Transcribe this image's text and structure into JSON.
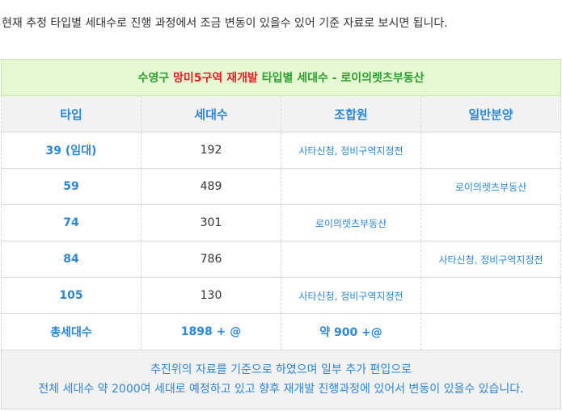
{
  "intro_text": "현재 추정 타입별 세대수로 진행 과정에서 조금 변동이 있을수 있어 기준 자료로 보시면 됩니다.",
  "caption": {
    "part1": "수영구",
    "part2": "망미5구역",
    "part3": "재개발",
    "part4": "타입별 세대수 - 로이의렛츠부동산"
  },
  "headers": [
    "타입",
    "세대수",
    "조합원",
    "일반분양"
  ],
  "rows": [
    {
      "type": "39 (임대)",
      "count": "192",
      "member": "사타신청, 정비구역지정전",
      "general": ""
    },
    {
      "type": "59",
      "count": "489",
      "member": "",
      "general": "로이의렛츠부동산"
    },
    {
      "type": "74",
      "count": "301",
      "member": "로이의렛츠부동산",
      "general": ""
    },
    {
      "type": "84",
      "count": "786",
      "member": "",
      "general": "사타신청, 정비구역지정전"
    },
    {
      "type": "105",
      "count": "130",
      "member": "사타신청, 정비구역지정전",
      "general": ""
    }
  ],
  "total": {
    "label": "총세대수",
    "count": "1898 + @",
    "member": "약 900 +@",
    "general": ""
  },
  "footer": {
    "line1": "추진위의 자료를 기준으로 하였으며 일부 추가 편입으로",
    "line2": "전체 세대수 약 2000여 세대로 예정하고 있고 향후 재개발 진행과정에 있어서 변동이 있을수 있습니다."
  },
  "colors": {
    "accent_blue": "#2e86d6",
    "highlight_red": "#e02020",
    "caption_green": "#2e9e2e",
    "caption_bg": "#e6f7d4"
  }
}
